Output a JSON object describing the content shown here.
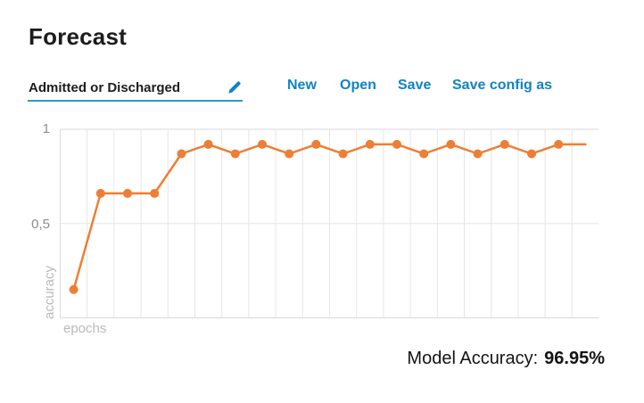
{
  "page": {
    "title": "Forecast"
  },
  "config_field": {
    "value": "Admitted or Discharged",
    "edit_icon": "pencil-icon"
  },
  "menu": {
    "items": [
      {
        "label": "New"
      },
      {
        "label": "Open"
      },
      {
        "label": "Save"
      },
      {
        "label": "Save config as"
      }
    ]
  },
  "footer": {
    "label": "Model Accuracy:",
    "value": "96.95%"
  },
  "colors": {
    "accent_blue": "#1183C4",
    "underline_blue": "#2F96CC",
    "line_orange": "#EE7E33",
    "tick_gray": "#8d8d8d",
    "axis_label_gray": "#b9b9b9",
    "grid_line": "#e6e6e6",
    "grid_border": "#d9d9d9",
    "title_text": "#1c1c1c"
  },
  "chart_data": {
    "type": "line",
    "title": "",
    "xlabel": "epochs",
    "ylabel": "accuracy",
    "x": [
      1,
      2,
      3,
      4,
      5,
      6,
      7,
      8,
      9,
      10,
      11,
      12,
      13,
      14,
      15,
      16,
      17,
      18,
      19,
      20
    ],
    "values": [
      0.15,
      0.66,
      0.66,
      0.66,
      0.87,
      0.92,
      0.87,
      0.92,
      0.87,
      0.92,
      0.87,
      0.92,
      0.92,
      0.87,
      0.92,
      0.87,
      0.92,
      0.87,
      0.92,
      0.92
    ],
    "ylim": [
      0,
      1
    ],
    "yticks": [
      {
        "value": 1,
        "label": "1"
      },
      {
        "value": 0.5,
        "label": "0,5"
      }
    ],
    "grid": true,
    "legend": false,
    "line_color": "#EE7E33",
    "marker": "circle",
    "marker_radius": 5,
    "last_point_has_marker": false
  }
}
